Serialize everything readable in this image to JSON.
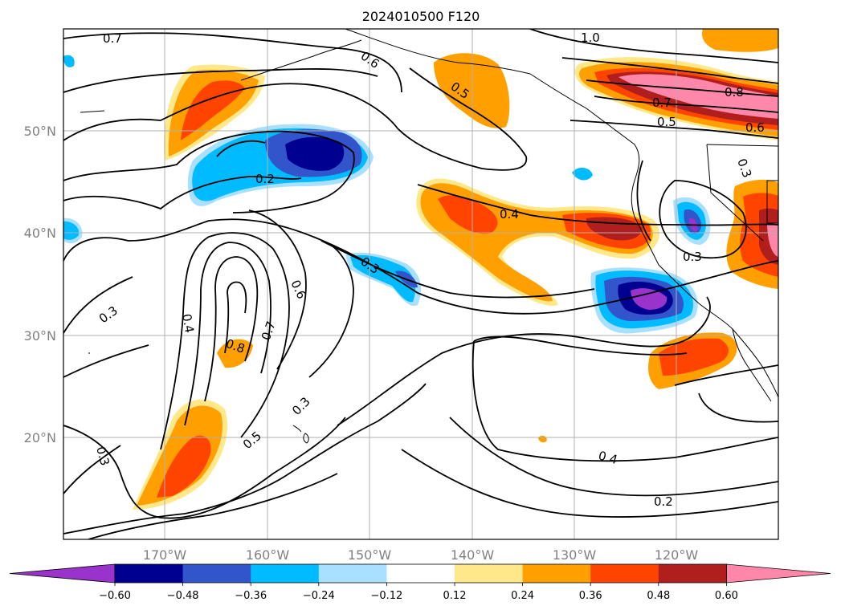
{
  "title": "2024010500 F120",
  "lon_labels": [
    "170°W",
    "160°W",
    "150°W",
    "140°W",
    "130°W",
    "120°W"
  ],
  "lat_labels": [
    "50°N",
    "40°N",
    "30°N",
    "20°N"
  ],
  "colorbar": {
    "colors": [
      "#9a33cc",
      "#000090",
      "#3355cc",
      "#00bbff",
      "#aae0ff",
      "#ffffff",
      "#ffe88a",
      "#ffa000",
      "#ff4400",
      "#b01e1e",
      "#ff88aa"
    ],
    "ticks": [
      "−0.60",
      "−0.48",
      "−0.36",
      "−0.24",
      "−0.12",
      "0.12",
      "0.24",
      "0.36",
      "0.48",
      "0.60"
    ]
  },
  "contour_labels": [
    "0.7",
    "0.6",
    "1.0",
    "0.5",
    "0.8",
    "0.7",
    "0.5",
    "0.6",
    "0.2",
    "0.3",
    "0.4",
    "0.3",
    "0.3",
    "0.3",
    "0.4",
    "0.6",
    "0.7",
    "0.8",
    "0.3",
    "0.5",
    "0.3",
    "0.4",
    "0.2"
  ]
}
